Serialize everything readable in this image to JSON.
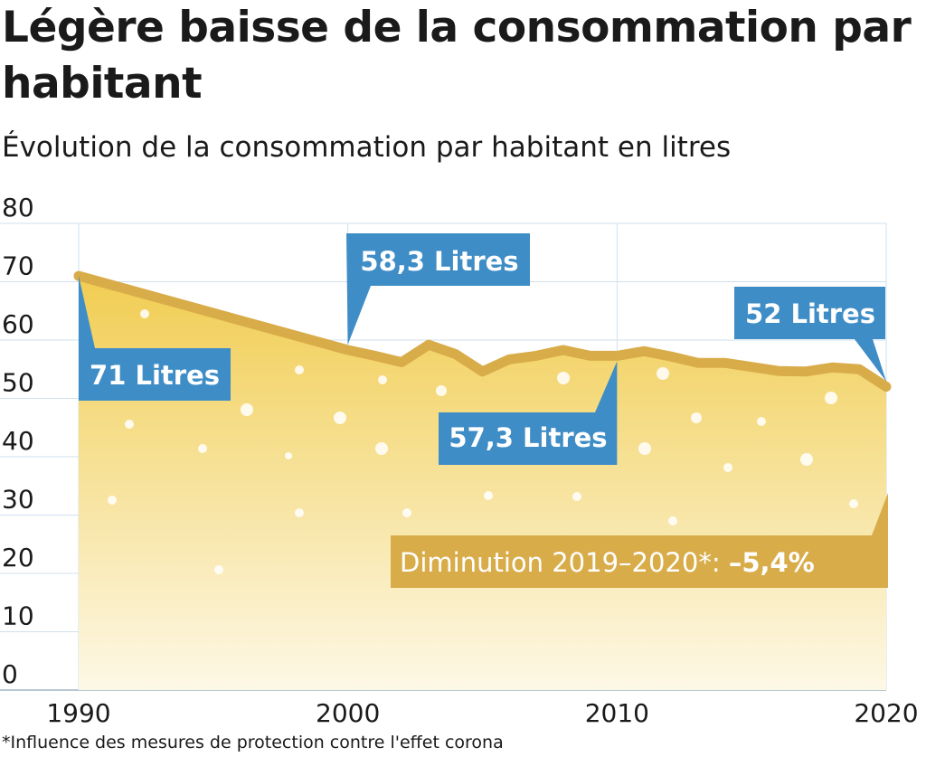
{
  "header": {
    "title": "Légère baisse de la consommation par habitant",
    "subtitle": "Évolution de la consommation par habitant en litres"
  },
  "footnote": "*Influence des mesures de protection contre l'effet corona",
  "colors": {
    "line": "#d9ac4a",
    "area_top": "#f1cd52",
    "area_bottom": "#fdf8e6",
    "callout_blue": "#3f8dc6",
    "note_bg": "#d9ac4a",
    "grid": "#cfe0ee"
  },
  "chart_data": {
    "type": "area",
    "title": "Légère baisse de la consommation par habitant",
    "subtitle": "Évolution de la consommation par habitant en litres",
    "xlabel": "",
    "ylabel": "",
    "xlim": [
      1990,
      2020
    ],
    "ylim": [
      0,
      80
    ],
    "grid": true,
    "x_ticks": [
      "1990",
      "2000",
      "2010",
      "2020"
    ],
    "y_ticks": [
      "0",
      "10",
      "20",
      "30",
      "40",
      "50",
      "60",
      "70",
      "80"
    ],
    "series": [
      {
        "x": [
          1990,
          2000,
          2001,
          2002,
          2003,
          2004,
          2005,
          2006,
          2007,
          2008,
          2009,
          2010,
          2011,
          2012,
          2013,
          2014,
          2015,
          2016,
          2017,
          2018,
          2019,
          2020
        ],
        "values": [
          71,
          58.3,
          57.3,
          56.2,
          59.2,
          57.6,
          54.6,
          56.7,
          57.3,
          58.3,
          57.3,
          57.3,
          58.1,
          57.2,
          56.1,
          56.1,
          55.4,
          54.7,
          54.6,
          55.3,
          55.0,
          52
        ]
      }
    ],
    "annotations": [
      {
        "text": "71 Litres",
        "x": 1990,
        "y": 71
      },
      {
        "text": "58,3 Litres",
        "x": 2000,
        "y": 58.3
      },
      {
        "text": "57,3 Litres",
        "x": 2010,
        "y": 57.3
      },
      {
        "text": "52 Litres",
        "x": 2020,
        "y": 52
      }
    ],
    "note": {
      "label": "Diminution 2019–2020*: ",
      "value": "–5,4%"
    }
  }
}
